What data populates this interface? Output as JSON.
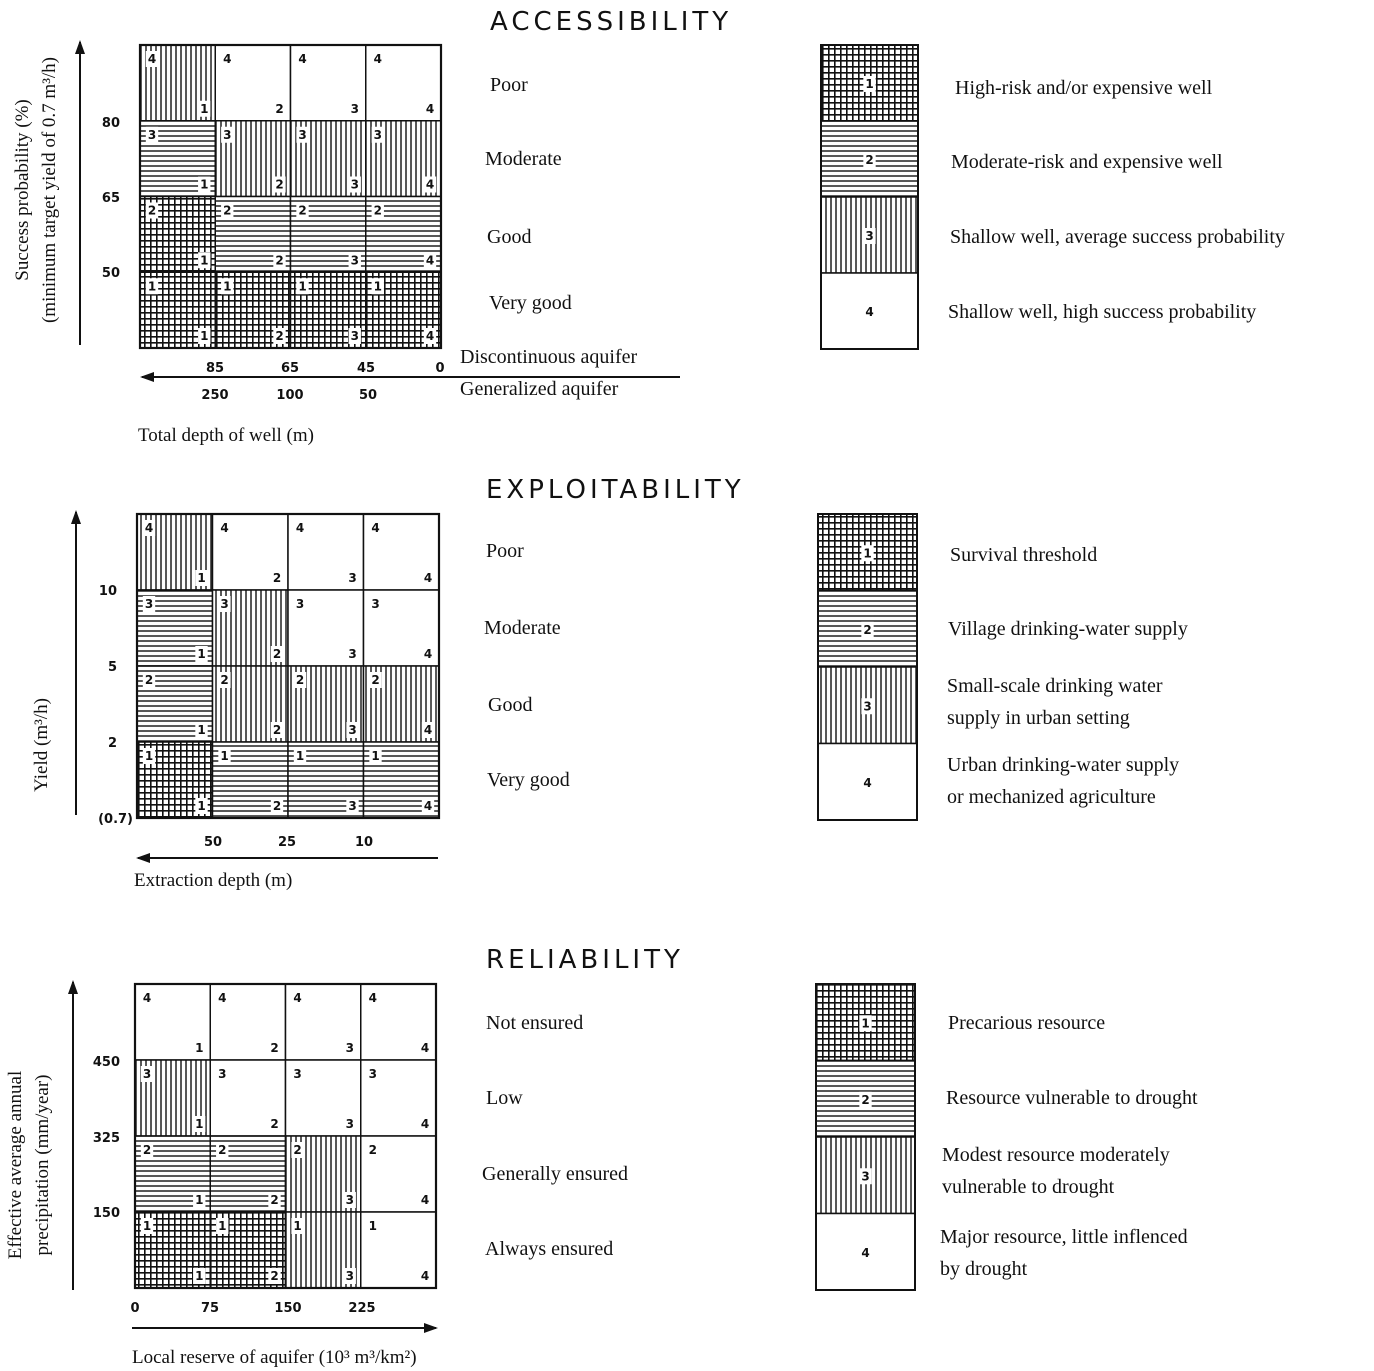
{
  "patterns": {
    "1": "dense-grid",
    "2": "horizontal-lines",
    "3": "vertical-lines",
    "4": "blank"
  },
  "panels": [
    {
      "title": "ACCESSIBILITY",
      "y_axis_label": [
        "Success probability (%)",
        "(minimum target yield of 0.7 m³/h)"
      ],
      "y_ticks": [
        "80",
        "65",
        "50"
      ],
      "x_tick_rows": [
        {
          "label": "Discontinuous aquifer",
          "ticks": [
            "85",
            "65",
            "45",
            "0"
          ]
        },
        {
          "label": "Generalized aquifer",
          "ticks": [
            "250",
            "100",
            "50"
          ]
        }
      ],
      "x_axis_label": "Total depth of well (m)",
      "levels": [
        "Poor",
        "Moderate",
        "Good",
        "Very good"
      ],
      "matrix": [
        [
          3,
          4,
          4,
          4
        ],
        [
          2,
          3,
          3,
          3
        ],
        [
          1,
          2,
          2,
          2
        ],
        [
          1,
          1,
          1,
          1
        ]
      ],
      "legend": [
        {
          "code": "1",
          "text": [
            "High-risk and/or expensive well"
          ]
        },
        {
          "code": "2",
          "text": [
            "Moderate-risk and expensive well"
          ]
        },
        {
          "code": "3",
          "text": [
            "Shallow well, average success probability"
          ]
        },
        {
          "code": "4",
          "text": [
            "Shallow well, high success probability"
          ]
        }
      ]
    },
    {
      "title": "EXPLOITABILITY",
      "y_axis_label": [
        "Yield (m³/h)"
      ],
      "y_ticks": [
        "10",
        "5",
        "2",
        "(0.7)"
      ],
      "x_tick_rows": [
        {
          "label": "",
          "ticks": [
            "50",
            "25",
            "10"
          ]
        }
      ],
      "x_axis_label": "Extraction depth (m)",
      "levels": [
        "Poor",
        "Moderate",
        "Good",
        "Very good"
      ],
      "matrix": [
        [
          3,
          4,
          4,
          4
        ],
        [
          2,
          3,
          4,
          4
        ],
        [
          2,
          3,
          3,
          3
        ],
        [
          1,
          2,
          2,
          2
        ]
      ],
      "legend": [
        {
          "code": "1",
          "text": [
            "Survival threshold"
          ]
        },
        {
          "code": "2",
          "text": [
            "Village drinking-water supply"
          ]
        },
        {
          "code": "3",
          "text": [
            "Small-scale drinking water",
            "supply in urban setting"
          ]
        },
        {
          "code": "4",
          "text": [
            "Urban drinking-water supply",
            "or mechanized agriculture"
          ]
        }
      ]
    },
    {
      "title": "RELIABILITY",
      "y_axis_label": [
        "Effective average annual",
        "precipitation (mm/year)"
      ],
      "y_ticks": [
        "450",
        "325",
        "150"
      ],
      "x_tick_rows": [
        {
          "label": "",
          "ticks": [
            "0",
            "75",
            "150",
            "225"
          ]
        }
      ],
      "x_axis_label": "Local reserve of aquifer (10³ m³/km²)",
      "levels": [
        "Not ensured",
        "Low",
        "Generally ensured",
        "Always ensured"
      ],
      "matrix": [
        [
          4,
          4,
          4,
          4
        ],
        [
          3,
          4,
          4,
          4
        ],
        [
          2,
          2,
          3,
          4
        ],
        [
          1,
          1,
          3,
          4
        ]
      ],
      "legend": [
        {
          "code": "1",
          "text": [
            "Precarious resource"
          ]
        },
        {
          "code": "2",
          "text": [
            "Resource vulnerable to drought"
          ]
        },
        {
          "code": "3",
          "text": [
            "Modest resource moderately",
            "vulnerable to drought"
          ]
        },
        {
          "code": "4",
          "text": [
            "Major resource, little inflenced",
            "by drought"
          ]
        }
      ]
    }
  ]
}
